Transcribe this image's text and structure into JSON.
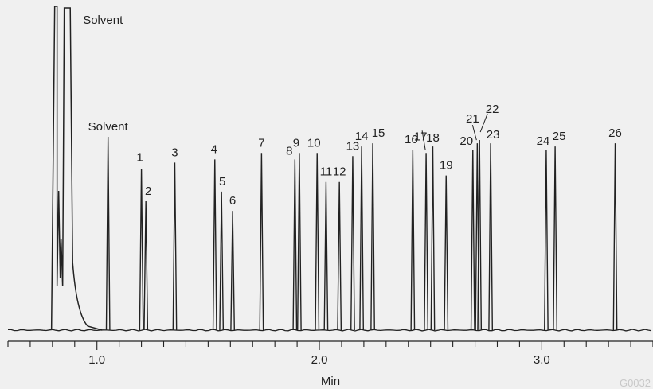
{
  "chart_data": {
    "type": "line",
    "title": "",
    "xlabel": "Min",
    "ylabel": "",
    "xlim": [
      0.6,
      3.5
    ],
    "ylim": [
      0,
      1.0
    ],
    "x_ticks": [
      1.0,
      2.0,
      3.0
    ],
    "x_tick_labels": [
      "1.0",
      "2.0",
      "3.0"
    ],
    "x_minor_step": 0.1,
    "grid": false,
    "line_color": "#222222",
    "background": "#f0f0f0",
    "watermark": "G0032",
    "solvent_front": {
      "label": "Solvent",
      "start": 0.81,
      "end": 0.88
    },
    "peaks": [
      {
        "label": "Solvent",
        "x": 1.05,
        "height": 0.6
      },
      {
        "label": "1",
        "x": 1.2,
        "height": 0.5
      },
      {
        "label": "2",
        "x": 1.22,
        "height": 0.4
      },
      {
        "label": "3",
        "x": 1.35,
        "height": 0.52
      },
      {
        "label": "4",
        "x": 1.53,
        "height": 0.53
      },
      {
        "label": "5",
        "x": 1.56,
        "height": 0.43
      },
      {
        "label": "6",
        "x": 1.61,
        "height": 0.37
      },
      {
        "label": "7",
        "x": 1.74,
        "height": 0.55
      },
      {
        "label": "8",
        "x": 1.89,
        "height": 0.53
      },
      {
        "label": "9",
        "x": 1.91,
        "height": 0.55
      },
      {
        "label": "10",
        "x": 1.99,
        "height": 0.55
      },
      {
        "label": "11",
        "x": 2.03,
        "height": 0.46
      },
      {
        "label": "12",
        "x": 2.09,
        "height": 0.46
      },
      {
        "label": "13",
        "x": 2.15,
        "height": 0.54
      },
      {
        "label": "14",
        "x": 2.19,
        "height": 0.57
      },
      {
        "label": "15",
        "x": 2.24,
        "height": 0.58
      },
      {
        "label": "16",
        "x": 2.42,
        "height": 0.56
      },
      {
        "label": "17",
        "x": 2.48,
        "height": 0.55
      },
      {
        "label": "18",
        "x": 2.51,
        "height": 0.57
      },
      {
        "label": "19",
        "x": 2.57,
        "height": 0.48
      },
      {
        "label": "20",
        "x": 2.69,
        "height": 0.56
      },
      {
        "label": "21",
        "x": 2.71,
        "height": 0.58
      },
      {
        "label": "22",
        "x": 2.72,
        "height": 0.59
      },
      {
        "label": "23",
        "x": 2.77,
        "height": 0.58
      },
      {
        "label": "24",
        "x": 3.02,
        "height": 0.56
      },
      {
        "label": "25",
        "x": 3.06,
        "height": 0.57
      },
      {
        "label": "26",
        "x": 3.33,
        "height": 0.58
      }
    ]
  }
}
